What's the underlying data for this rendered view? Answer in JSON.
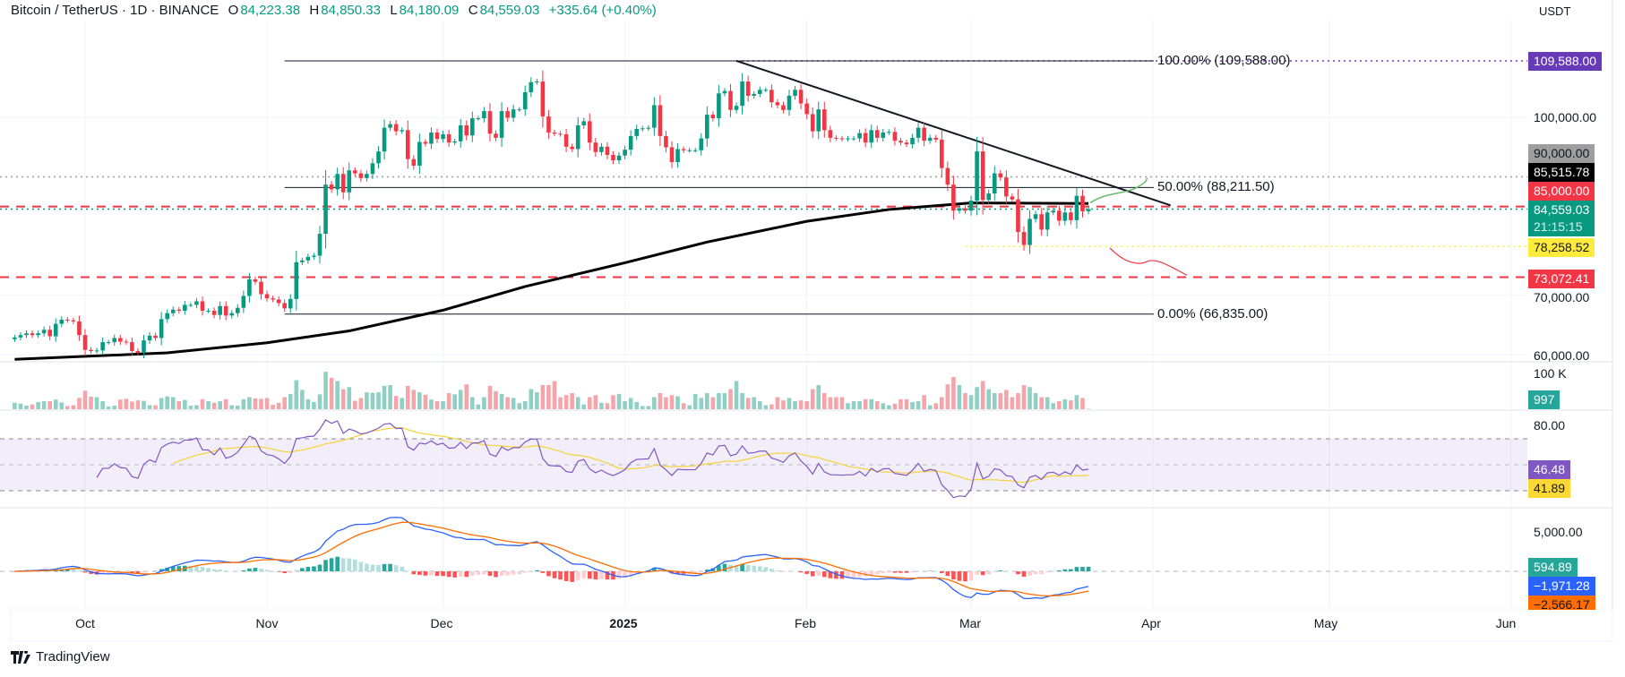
{
  "header": {
    "symbol": "Bitcoin / TetherUS · 1D · BINANCE",
    "open_label": "O",
    "open": "84,223.38",
    "high_label": "H",
    "high": "84,850.33",
    "low_label": "L",
    "low": "84,180.09",
    "close_label": "C",
    "close": "84,559.03",
    "change": "+335.64 (+0.40%)"
  },
  "currency": "USDT",
  "colors": {
    "up": "#089981",
    "down": "#f23645",
    "vol_up": "#8fcfc4",
    "vol_down": "#f5a5aa",
    "ma200": "#000000",
    "rsi": "#7e57c2",
    "rsi_ma": "#f5d23b",
    "macd": "#2962ff",
    "signal": "#ff6d00",
    "fib_top": "#673ab7",
    "yellow_line": "#ffeb3b"
  },
  "price_axis": {
    "labels": [
      {
        "text": "109,588.00",
        "bg": "#673ab7",
        "fg": "#ffffff"
      },
      {
        "text": "100,000.00",
        "bg": "",
        "fg": "#131722"
      },
      {
        "text": "90,000.00",
        "bg": "#9e9e9e",
        "fg": "#131722"
      },
      {
        "text": "85,515.78",
        "bg": "#000000",
        "fg": "#ffffff"
      },
      {
        "text": "85,000.00",
        "bg": "#f23645",
        "fg": "#ffffff"
      },
      {
        "text": "84,559.03",
        "bg": "#089981",
        "fg": "#ffffff",
        "sub": "21:15:15"
      },
      {
        "text": "78,258.52",
        "bg": "#ffeb3b",
        "fg": "#131722"
      },
      {
        "text": "73,072.41",
        "bg": "#f23645",
        "fg": "#ffffff"
      },
      {
        "text": "70,000.00",
        "bg": "",
        "fg": "#131722"
      },
      {
        "text": "60,000.00",
        "bg": "",
        "fg": "#131722"
      }
    ]
  },
  "volume_axis": {
    "tick": "100 K",
    "current": "997"
  },
  "rsi_axis": {
    "tick": "80.00",
    "rsi": "46.48",
    "rsi_ma": "41.89"
  },
  "macd_axis": {
    "tick": "5,000.00",
    "histogram": "594.89",
    "macd": "−1,971.28",
    "signal": "−2,566.17"
  },
  "time_axis": [
    "Oct",
    "Nov",
    "Dec",
    "2025",
    "Feb",
    "Mar",
    "Apr",
    "May",
    "Jun"
  ],
  "brand": "TradingView",
  "chart_data": {
    "type": "candlestick",
    "interval": "1D",
    "start_date": "2024-09-19",
    "end_date": "2025-03-21",
    "y_scale": "linear",
    "ylim": [
      60000,
      109588
    ],
    "closes_k": [
      62.9,
      63.3,
      63.6,
      63.3,
      63.6,
      64.2,
      63.1,
      65.2,
      65.9,
      65.8,
      65.6,
      63.3,
      60.8,
      60.6,
      60.7,
      62.1,
      62.1,
      62.8,
      62.2,
      62.1,
      60.6,
      60.3,
      62.4,
      63.2,
      62.8,
      66.0,
      67.0,
      67.6,
      67.4,
      68.4,
      68.4,
      69.0,
      67.4,
      67.4,
      66.7,
      68.2,
      66.6,
      67.0,
      67.9,
      69.9,
      72.7,
      72.3,
      70.2,
      69.5,
      69.3,
      68.7,
      67.8,
      69.4,
      75.6,
      75.9,
      76.5,
      76.7,
      80.4,
      88.7,
      87.9,
      90.5,
      87.4,
      91.1,
      90.6,
      89.8,
      90.5,
      92.3,
      94.3,
      98.3,
      98.9,
      97.7,
      97.9,
      93.0,
      91.9,
      95.9,
      95.6,
      97.5,
      96.4,
      97.2,
      95.8,
      96.0,
      98.7,
      97.0,
      99.9,
      99.9,
      101.1,
      97.3,
      96.6,
      101.1,
      100.0,
      101.4,
      101.4,
      104.3,
      106.0,
      106.1,
      100.2,
      97.5,
      97.3,
      97.2,
      95.1,
      94.7,
      98.7,
      99.4,
      95.8,
      94.2,
      95.1,
      93.7,
      92.8,
      93.6,
      94.6,
      96.9,
      98.1,
      98.2,
      98.3,
      102.1,
      96.9,
      95.0,
      92.5,
      94.7,
      94.5,
      94.5,
      94.5,
      96.5,
      100.5,
      99.9,
      104.1,
      104.5,
      101.3,
      102.0,
      106.1,
      103.7,
      104.0,
      104.7,
      104.7,
      102.6,
      102.1,
      101.3,
      103.7,
      104.7,
      102.4,
      100.6,
      97.7,
      101.4,
      97.9,
      96.6,
      96.5,
      96.4,
      96.5,
      96.5,
      97.4,
      95.8,
      97.9,
      96.6,
      97.5,
      97.6,
      96.1,
      95.8,
      95.5,
      96.6,
      98.3,
      96.1,
      96.6,
      96.3,
      91.5,
      88.7,
      84.3,
      84.7,
      84.3,
      86.0,
      94.3,
      86.1,
      87.2,
      90.6,
      89.9,
      86.7,
      86.2,
      80.7,
      78.5,
      82.9,
      83.7,
      81.1,
      84.0,
      84.3,
      82.6,
      84.0,
      82.7,
      86.8,
      84.2,
      84.56
    ],
    "first_open_k": 62.6,
    "volume_k": [
      16,
      14,
      9,
      12,
      18,
      20,
      20,
      24,
      17,
      8,
      10,
      28,
      46,
      31,
      30,
      20,
      7,
      9,
      24,
      26,
      19,
      22,
      21,
      10,
      10,
      28,
      32,
      30,
      20,
      23,
      9,
      10,
      25,
      20,
      16,
      20,
      25,
      10,
      9,
      25,
      30,
      27,
      26,
      28,
      11,
      16,
      30,
      38,
      72,
      48,
      25,
      18,
      37,
      93,
      78,
      70,
      50,
      55,
      21,
      28,
      42,
      41,
      42,
      58,
      60,
      33,
      28,
      58,
      48,
      42,
      36,
      24,
      20,
      20,
      40,
      37,
      48,
      62,
      30,
      12,
      30,
      58,
      45,
      38,
      30,
      28,
      15,
      20,
      50,
      42,
      60,
      60,
      70,
      30,
      35,
      40,
      30,
      12,
      30,
      35,
      16,
      15,
      35,
      38,
      20,
      28,
      18,
      8,
      8,
      30,
      40,
      30,
      35,
      32,
      15,
      10,
      38,
      28,
      40,
      30,
      40,
      40,
      50,
      70,
      40,
      28,
      30,
      20,
      10,
      12,
      30,
      22,
      28,
      20,
      22,
      20,
      50,
      60,
      40,
      30,
      30,
      30,
      15,
      20,
      20,
      25,
      25,
      20,
      15,
      10,
      14,
      25,
      25,
      18,
      20,
      35,
      10,
      15,
      30,
      62,
      80,
      60,
      40,
      35,
      55,
      70,
      50,
      40,
      40,
      48,
      30,
      40,
      60,
      55,
      40,
      30,
      30,
      15,
      20,
      25,
      22,
      35,
      28,
      1
    ],
    "ma200": [
      [
        "2024-09-19",
        59200
      ],
      [
        "2024-10-15",
        60300
      ],
      [
        "2024-11-01",
        62000
      ],
      [
        "2024-11-15",
        64000
      ],
      [
        "2024-12-01",
        67500
      ],
      [
        "2024-12-15",
        71500
      ],
      [
        "2025-01-01",
        75500
      ],
      [
        "2025-01-15",
        79000
      ],
      [
        "2025-02-01",
        82500
      ],
      [
        "2025-02-15",
        84500
      ],
      [
        "2025-03-01",
        85600
      ],
      [
        "2025-03-21",
        85516
      ]
    ],
    "fibonacci": [
      {
        "text": "100.00% (109,588.00)",
        "price": 109588
      },
      {
        "text": "50.00% (88,211.50)",
        "price": 88211.5
      },
      {
        "text": "0.00% (66,835.00)",
        "price": 66835
      }
    ],
    "fib_start_date": "2024-11-04",
    "horizontal_levels": [
      {
        "price": 85000,
        "style": "dashed",
        "color": "#f23645"
      },
      {
        "price": 73072.41,
        "style": "dashed",
        "color": "#f23645"
      },
      {
        "price": 78258.52,
        "style": "dotted",
        "color": "#ffeb3b",
        "from": "2025-02-28"
      },
      {
        "price": 90000,
        "style": "dotted",
        "color": "#9e9e9e"
      },
      {
        "price": 84559.03,
        "style": "dotted",
        "color": "#089981"
      },
      {
        "price": 109588,
        "style": "dotted",
        "color": "#673ab7",
        "from": "2025-01-20"
      }
    ],
    "trendline": [
      [
        "2025-01-20",
        109588
      ],
      [
        "2025-04-04",
        85200
      ]
    ],
    "rsi": {
      "period": 14,
      "levels": [
        70,
        50,
        30
      ]
    },
    "macd": {
      "fast": 12,
      "slow": 26,
      "signal": 9
    }
  }
}
